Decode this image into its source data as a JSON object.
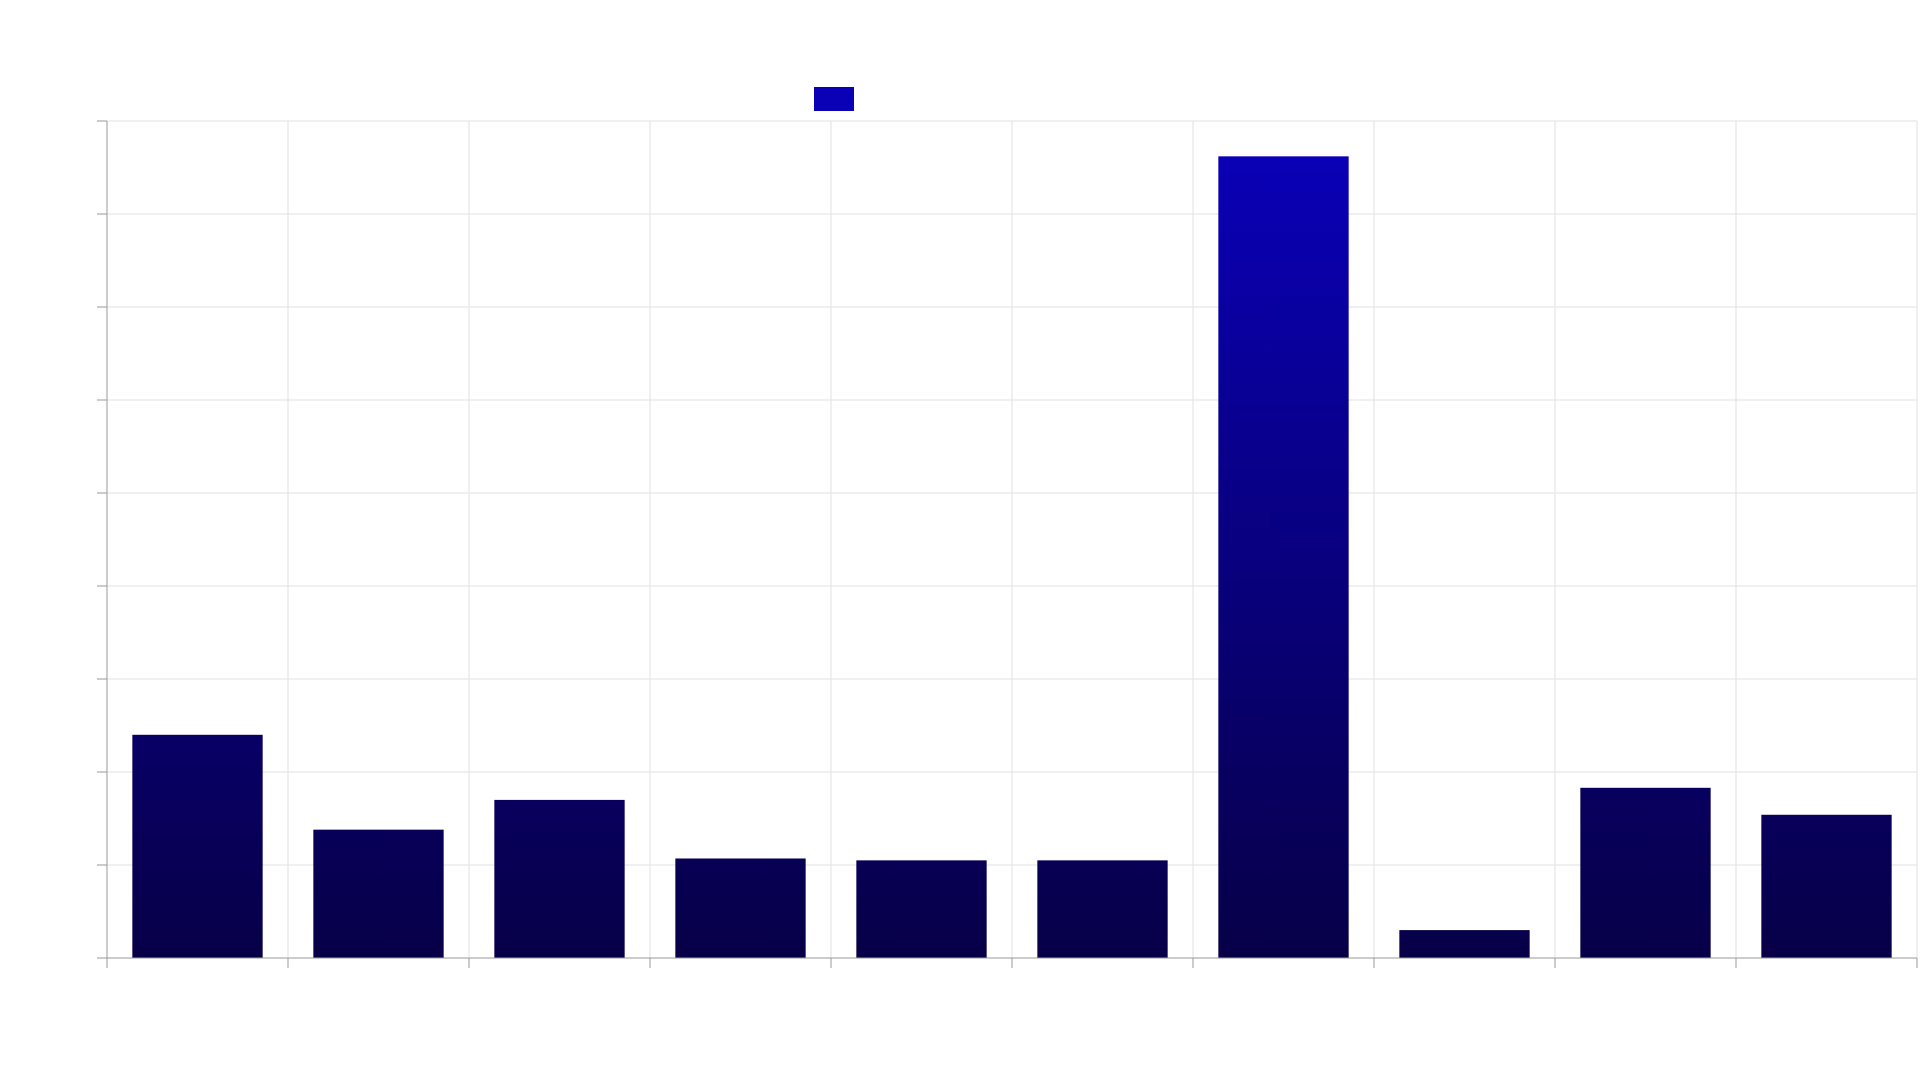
{
  "chart_data": {
    "type": "bar",
    "categories": [
      "",
      "",
      "",
      "",
      "",
      "",
      "",
      "",
      "",
      ""
    ],
    "values": [
      240,
      138,
      170,
      107,
      105,
      105,
      862,
      30,
      183,
      154
    ],
    "ylim": [
      0,
      900
    ],
    "y_gridlines": 9,
    "x_gridlines": 10,
    "grid": true,
    "legend": {
      "position": "top-center",
      "entries": [
        {
          "label": "",
          "color": "#0a00b6"
        }
      ]
    },
    "colors": {
      "bar_top": "#0a00b6",
      "bar_bottom": "#070047",
      "legend_swatch": "#0a00b6",
      "grid": "#e2e2e2",
      "axis": "#9a9a9a"
    }
  }
}
